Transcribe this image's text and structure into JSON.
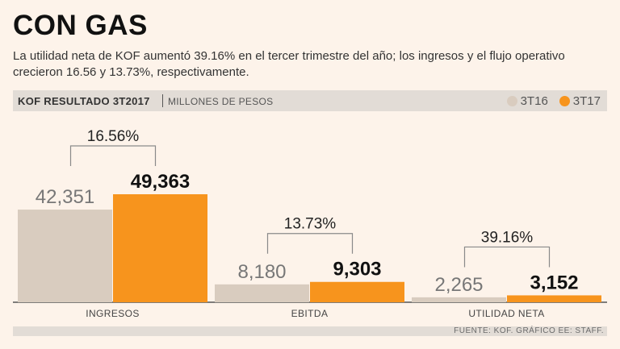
{
  "header": {
    "title": "CON GAS",
    "subtitle": "La utilidad neta de KOF aumentó 39.16% en el tercer trimestre del año; los ingresos y el flujo operativo crecieron 16.56 y 13.73%, respectivamente."
  },
  "band": {
    "title": "KOF RESULTADO 3T2017",
    "unit": "MILLONES DE PESOS"
  },
  "colors": {
    "prev": "#d9ccbf",
    "curr": "#f7941d",
    "bracket": "#8a8a8a",
    "axis": "#555555"
  },
  "chart_data": {
    "type": "bar",
    "title": "KOF RESULTADO 3T2017",
    "ylabel": "MILLONES DE PESOS",
    "categories": [
      "INGRESOS",
      "EBITDA",
      "UTILIDAD NETA"
    ],
    "series": [
      {
        "name": "3T16",
        "values": [
          42351,
          8180,
          2265
        ],
        "labels": [
          "42,351",
          "8,180",
          "2,265"
        ]
      },
      {
        "name": "3T17",
        "values": [
          49363,
          9303,
          3152
        ],
        "labels": [
          "49,363",
          "9,303",
          "3,152"
        ]
      }
    ],
    "growth_labels": [
      "16.56%",
      "13.73%",
      "39.16%"
    ],
    "legend_position": "top-right"
  },
  "footer": {
    "source": "FUENTE: KOF. GRÁFICO EE: STAFF."
  }
}
